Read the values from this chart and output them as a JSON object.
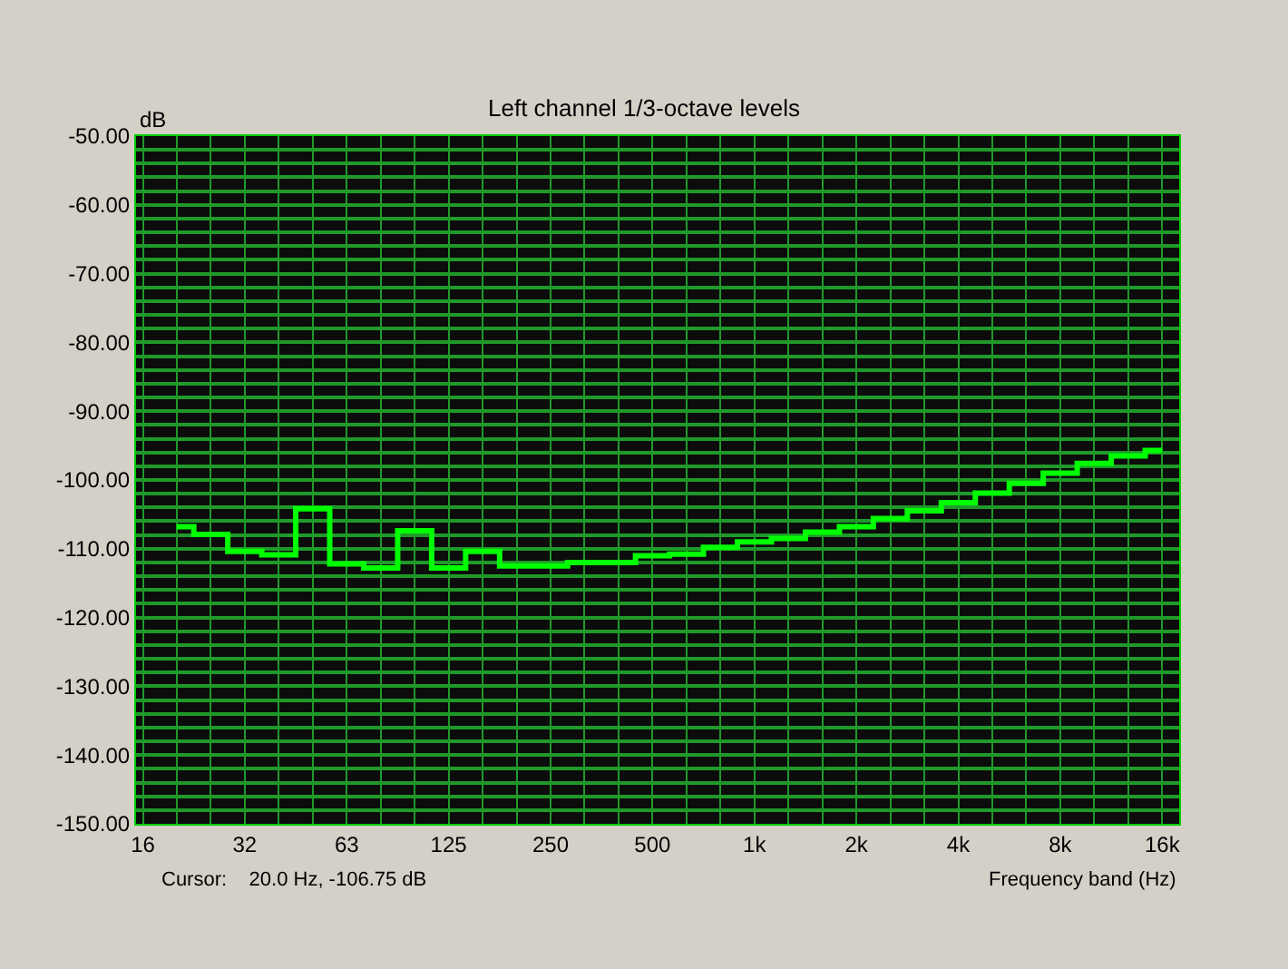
{
  "chart_data": {
    "type": "step",
    "title": "Left channel 1/3-octave levels",
    "ylabel": "dB",
    "xlabel": "Frequency band (Hz)",
    "annotations": [
      "Cursor:    20.0 Hz, -106.75 dB"
    ],
    "categories": [
      "16",
      null,
      null,
      "32",
      null,
      null,
      "63",
      null,
      null,
      "125",
      null,
      null,
      "250",
      null,
      null,
      "500",
      null,
      null,
      "1k",
      null,
      null,
      "2k",
      null,
      null,
      "4k",
      null,
      null,
      "8k",
      null,
      null,
      "16k"
    ],
    "series": [
      {
        "color": "#00ff00",
        "values": [
          null,
          -106.8,
          -107.9,
          -110.4,
          -110.9,
          -104.2,
          -112.2,
          -112.8,
          -107.4,
          -112.8,
          -110.4,
          -112.5,
          -112.5,
          -112.0,
          -112.0,
          -111.0,
          -110.8,
          -109.8,
          -109.0,
          -108.5,
          -107.6,
          -106.8,
          -105.6,
          -104.5,
          -103.3,
          -101.9,
          -100.5,
          -99.0,
          -97.6,
          -96.5,
          -95.7
        ]
      }
    ],
    "ylim": [
      -150,
      -50
    ],
    "yticks": [
      {
        "value": -150,
        "label": "-150.00"
      },
      {
        "value": -148,
        "label": null
      },
      {
        "value": -146,
        "label": null
      },
      {
        "value": -144,
        "label": null
      },
      {
        "value": -142,
        "label": null
      },
      {
        "value": -140,
        "label": "-140.00"
      },
      {
        "value": -138,
        "label": null
      },
      {
        "value": -136,
        "label": null
      },
      {
        "value": -134,
        "label": null
      },
      {
        "value": -132,
        "label": null
      },
      {
        "value": -130,
        "label": "-130.00"
      },
      {
        "value": -128,
        "label": null
      },
      {
        "value": -126,
        "label": null
      },
      {
        "value": -124,
        "label": null
      },
      {
        "value": -122,
        "label": null
      },
      {
        "value": -120,
        "label": "-120.00"
      },
      {
        "value": -118,
        "label": null
      },
      {
        "value": -116,
        "label": null
      },
      {
        "value": -114,
        "label": null
      },
      {
        "value": -112,
        "label": null
      },
      {
        "value": -110,
        "label": "-110.00"
      },
      {
        "value": -108,
        "label": null
      },
      {
        "value": -106,
        "label": null
      },
      {
        "value": -104,
        "label": null
      },
      {
        "value": -102,
        "label": null
      },
      {
        "value": -100,
        "label": "-100.00"
      },
      {
        "value": -98,
        "label": null
      },
      {
        "value": -96,
        "label": null
      },
      {
        "value": -94,
        "label": null
      },
      {
        "value": -92,
        "label": null
      },
      {
        "value": -90,
        "label": "-90.00"
      },
      {
        "value": -88,
        "label": null
      },
      {
        "value": -86,
        "label": null
      },
      {
        "value": -84,
        "label": null
      },
      {
        "value": -82,
        "label": null
      },
      {
        "value": -80,
        "label": "-80.00"
      },
      {
        "value": -78,
        "label": null
      },
      {
        "value": -76,
        "label": null
      },
      {
        "value": -74,
        "label": null
      },
      {
        "value": -72,
        "label": null
      },
      {
        "value": -70,
        "label": "-70.00"
      },
      {
        "value": -68,
        "label": null
      },
      {
        "value": -66,
        "label": null
      },
      {
        "value": -64,
        "label": null
      },
      {
        "value": -62,
        "label": null
      },
      {
        "value": -60,
        "label": "-60.00"
      },
      {
        "value": -58,
        "label": null
      },
      {
        "value": -56,
        "label": null
      },
      {
        "value": -54,
        "label": null
      },
      {
        "value": -52,
        "label": null
      },
      {
        "value": -50,
        "label": "-50.00"
      }
    ],
    "grid": true,
    "marker": "none",
    "line_style": "solid"
  }
}
